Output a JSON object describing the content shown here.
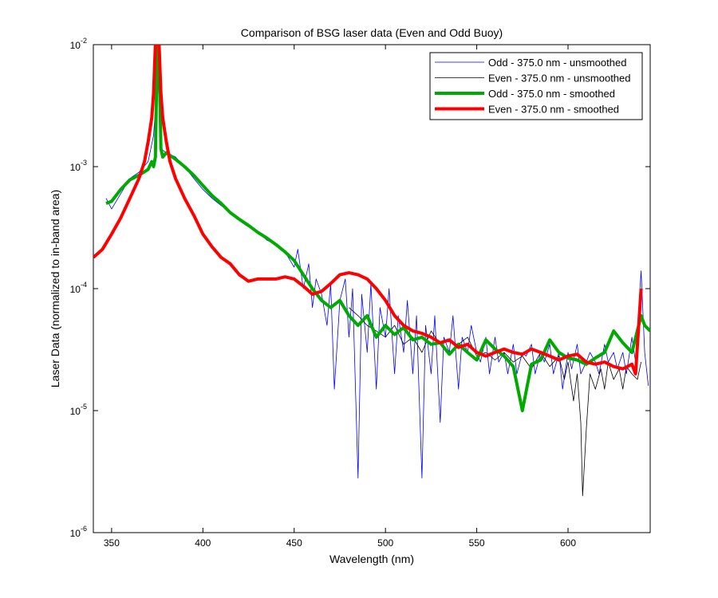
{
  "chart_data": {
    "type": "line",
    "title": "Comparison of BSG laser data (Even and Odd Buoy)",
    "xlabel": "Wavelength (nm)",
    "ylabel": "Laser Data (normalized to in-band area)",
    "xlim": [
      340,
      645
    ],
    "ylim": [
      1e-06,
      0.01
    ],
    "yscale": "log",
    "grid": false,
    "legend_position": "top-right",
    "xticks": [
      {
        "value": 350,
        "label": "350"
      },
      {
        "value": 400,
        "label": "400"
      },
      {
        "value": 450,
        "label": "450"
      },
      {
        "value": 500,
        "label": "500"
      },
      {
        "value": 550,
        "label": "550"
      },
      {
        "value": 600,
        "label": "600"
      }
    ],
    "yticks": [
      {
        "value": 1e-06,
        "base": "10",
        "exp": "-6"
      },
      {
        "value": 1e-05,
        "base": "10",
        "exp": "-5"
      },
      {
        "value": 0.0001,
        "base": "10",
        "exp": "-4"
      },
      {
        "value": 0.001,
        "base": "10",
        "exp": "-3"
      },
      {
        "value": 0.01,
        "base": "10",
        "exp": "-2"
      }
    ],
    "series": [
      {
        "name": "Odd - 375.0 nm - unsmoothed",
        "color": "#0000ff",
        "width": 0.8,
        "x": [
          347,
          350,
          355,
          360,
          365,
          370,
          373,
          374,
          375,
          376,
          377,
          380,
          385,
          390,
          395,
          400,
          405,
          410,
          415,
          420,
          425,
          430,
          435,
          440,
          445,
          450,
          452,
          455,
          458,
          460,
          462,
          465,
          468,
          470,
          472,
          475,
          478,
          480,
          482,
          485,
          487,
          490,
          492,
          495,
          497,
          500,
          502,
          505,
          507,
          510,
          512,
          515,
          517,
          520,
          522,
          525,
          527,
          530,
          532,
          535,
          537,
          540,
          542,
          545,
          547,
          550,
          552,
          555,
          557,
          560,
          562,
          565,
          567,
          570,
          572,
          575,
          577,
          580,
          582,
          585,
          587,
          590,
          592,
          595,
          597,
          600,
          602,
          605,
          607,
          610,
          612,
          615,
          617,
          620,
          622,
          625,
          627,
          630,
          632,
          635,
          637,
          640,
          642,
          644
        ],
        "values": [
          0.00055,
          0.00045,
          0.0006,
          0.0008,
          0.0009,
          0.0011,
          0.0018,
          0.003,
          0.008,
          0.003,
          0.0014,
          0.0013,
          0.0012,
          0.001,
          0.0008,
          0.00065,
          0.00055,
          0.00048,
          0.00042,
          0.00036,
          0.00032,
          0.00029,
          0.00025,
          0.00023,
          0.0002,
          0.00015,
          0.00021,
          0.0001,
          0.00016,
          7e-05,
          0.00012,
          9e-05,
          5e-05,
          0.00011,
          1.5e-05,
          8e-05,
          0.00012,
          4e-05,
          0.0001,
          2.8e-06,
          9e-05,
          3e-05,
          0.00011,
          1.5e-05,
          7e-05,
          4e-05,
          0.0001,
          2e-05,
          6e-05,
          3e-05,
          8e-05,
          2e-05,
          6e-05,
          2.8e-06,
          5e-05,
          2e-05,
          6e-05,
          8e-06,
          4e-05,
          3e-05,
          6e-05,
          1.5e-05,
          4e-05,
          3e-05,
          5e-05,
          3e-05,
          2.5e-05,
          4e-05,
          2e-05,
          4e-05,
          2.5e-05,
          3e-05,
          2e-05,
          3.5e-05,
          2e-05,
          3e-05,
          2.8e-05,
          3.5e-05,
          2e-05,
          3e-05,
          2.5e-05,
          3.5e-05,
          2e-05,
          3e-05,
          1.5e-05,
          3e-05,
          2.2e-05,
          3.5e-05,
          2e-05,
          2.5e-05,
          3e-05,
          2.5e-05,
          2e-05,
          3.5e-05,
          2.5e-05,
          3e-05,
          2.2e-05,
          3e-05,
          2e-05,
          4e-05,
          2.5e-05,
          0.00014,
          3e-05,
          1.6e-05
        ]
      },
      {
        "name": "Even - 375.0 nm - unsmoothed",
        "color": "#000000",
        "width": 0.8,
        "x": [
          480,
          485,
          490,
          495,
          500,
          505,
          510,
          515,
          520,
          525,
          530,
          535,
          540,
          545,
          550,
          555,
          560,
          565,
          570,
          575,
          580,
          585,
          590,
          595,
          598,
          600,
          603,
          605,
          607,
          608,
          610,
          612,
          615,
          618,
          620,
          622,
          625,
          628,
          630,
          632,
          635,
          638,
          640
        ],
        "values": [
          7e-05,
          6e-05,
          5e-05,
          4.5e-05,
          4e-05,
          5e-05,
          3.5e-05,
          4e-05,
          3e-05,
          4.5e-05,
          3.5e-05,
          3e-05,
          3.5e-05,
          4e-05,
          2.8e-05,
          3e-05,
          2.6e-05,
          3e-05,
          2.5e-05,
          2.8e-05,
          2.2e-05,
          3e-05,
          2.3e-05,
          2.8e-05,
          1.8e-05,
          2.5e-05,
          1.2e-05,
          2e-05,
          8e-06,
          2e-06,
          7e-06,
          2e-05,
          1.5e-05,
          2.2e-05,
          1.5e-05,
          2.5e-05,
          1.8e-05,
          2.2e-05,
          1.5e-05,
          2.3e-05,
          2e-05,
          1.8e-05,
          2.5e-05
        ]
      },
      {
        "name": "Odd - 375.0 nm - smoothed",
        "color": "#00aa00",
        "width": 4,
        "x": [
          347,
          350,
          355,
          360,
          365,
          370,
          372,
          373,
          374,
          375,
          376,
          377,
          378,
          380,
          385,
          390,
          395,
          400,
          405,
          410,
          415,
          420,
          425,
          430,
          435,
          440,
          445,
          450,
          455,
          460,
          465,
          470,
          475,
          480,
          485,
          490,
          495,
          500,
          505,
          510,
          515,
          520,
          525,
          530,
          535,
          540,
          545,
          550,
          555,
          560,
          565,
          570,
          575,
          580,
          585,
          590,
          595,
          600,
          605,
          610,
          615,
          620,
          625,
          630,
          635,
          640,
          642,
          645
        ],
        "values": [
          0.0005,
          0.00052,
          0.00065,
          0.00078,
          0.00085,
          0.00095,
          0.0011,
          0.001,
          0.0012,
          0.01,
          0.01,
          0.0014,
          0.0012,
          0.0013,
          0.00115,
          0.001,
          0.00085,
          0.0007,
          0.00058,
          0.0005,
          0.00042,
          0.00037,
          0.00033,
          0.00029,
          0.00026,
          0.00023,
          0.0002,
          0.00017,
          0.00013,
          0.0001,
          8e-05,
          7e-05,
          8e-05,
          6e-05,
          5e-05,
          6e-05,
          4e-05,
          5e-05,
          4.2e-05,
          4.8e-05,
          3.8e-05,
          4e-05,
          3.5e-05,
          3.6e-05,
          2.9e-05,
          3.5e-05,
          3e-05,
          2.6e-05,
          3.8e-05,
          3.2e-05,
          2.8e-05,
          2.3e-05,
          1e-05,
          2.4e-05,
          2.6e-05,
          3.8e-05,
          3e-05,
          2.7e-05,
          2.6e-05,
          2.4e-05,
          2.7e-05,
          3e-05,
          4.5e-05,
          3.6e-05,
          3e-05,
          6e-05,
          5e-05,
          4.5e-05
        ]
      },
      {
        "name": "Even - 375.0 nm - smoothed",
        "color": "#ff0000",
        "width": 4,
        "x": [
          340,
          345,
          350,
          355,
          360,
          365,
          368,
          370,
          372,
          373,
          374,
          376,
          377,
          378,
          380,
          382,
          385,
          390,
          395,
          400,
          405,
          410,
          415,
          420,
          425,
          430,
          435,
          440,
          445,
          450,
          455,
          460,
          465,
          470,
          475,
          480,
          485,
          490,
          495,
          500,
          505,
          510,
          515,
          520,
          525,
          530,
          535,
          540,
          545,
          550,
          555,
          560,
          565,
          570,
          575,
          580,
          585,
          590,
          595,
          600,
          605,
          610,
          615,
          620,
          625,
          630,
          635,
          637,
          640
        ],
        "values": [
          0.00018,
          0.00021,
          0.00028,
          0.00038,
          0.00055,
          0.0008,
          0.0011,
          0.0016,
          0.0025,
          0.004,
          0.01,
          0.01,
          0.004,
          0.0025,
          0.0016,
          0.0011,
          0.0008,
          0.00055,
          0.0004,
          0.00028,
          0.00022,
          0.00018,
          0.00016,
          0.00013,
          0.000115,
          0.00012,
          0.00012,
          0.00012,
          0.000125,
          0.00012,
          0.000105,
          9e-05,
          9.5e-05,
          0.00011,
          0.00013,
          0.000135,
          0.00013,
          0.00012,
          0.0001,
          8e-05,
          6e-05,
          5e-05,
          4.5e-05,
          4.3e-05,
          4e-05,
          3.6e-05,
          3.8e-05,
          3.3e-05,
          3.5e-05,
          3e-05,
          2.8e-05,
          3e-05,
          3.2e-05,
          3e-05,
          2.9e-05,
          3.2e-05,
          3e-05,
          2.8e-05,
          2.6e-05,
          2.8e-05,
          2.9e-05,
          2.5e-05,
          2.4e-05,
          2.5e-05,
          2.3e-05,
          2.2e-05,
          2.4e-05,
          2e-05,
          0.0001
        ]
      }
    ]
  }
}
